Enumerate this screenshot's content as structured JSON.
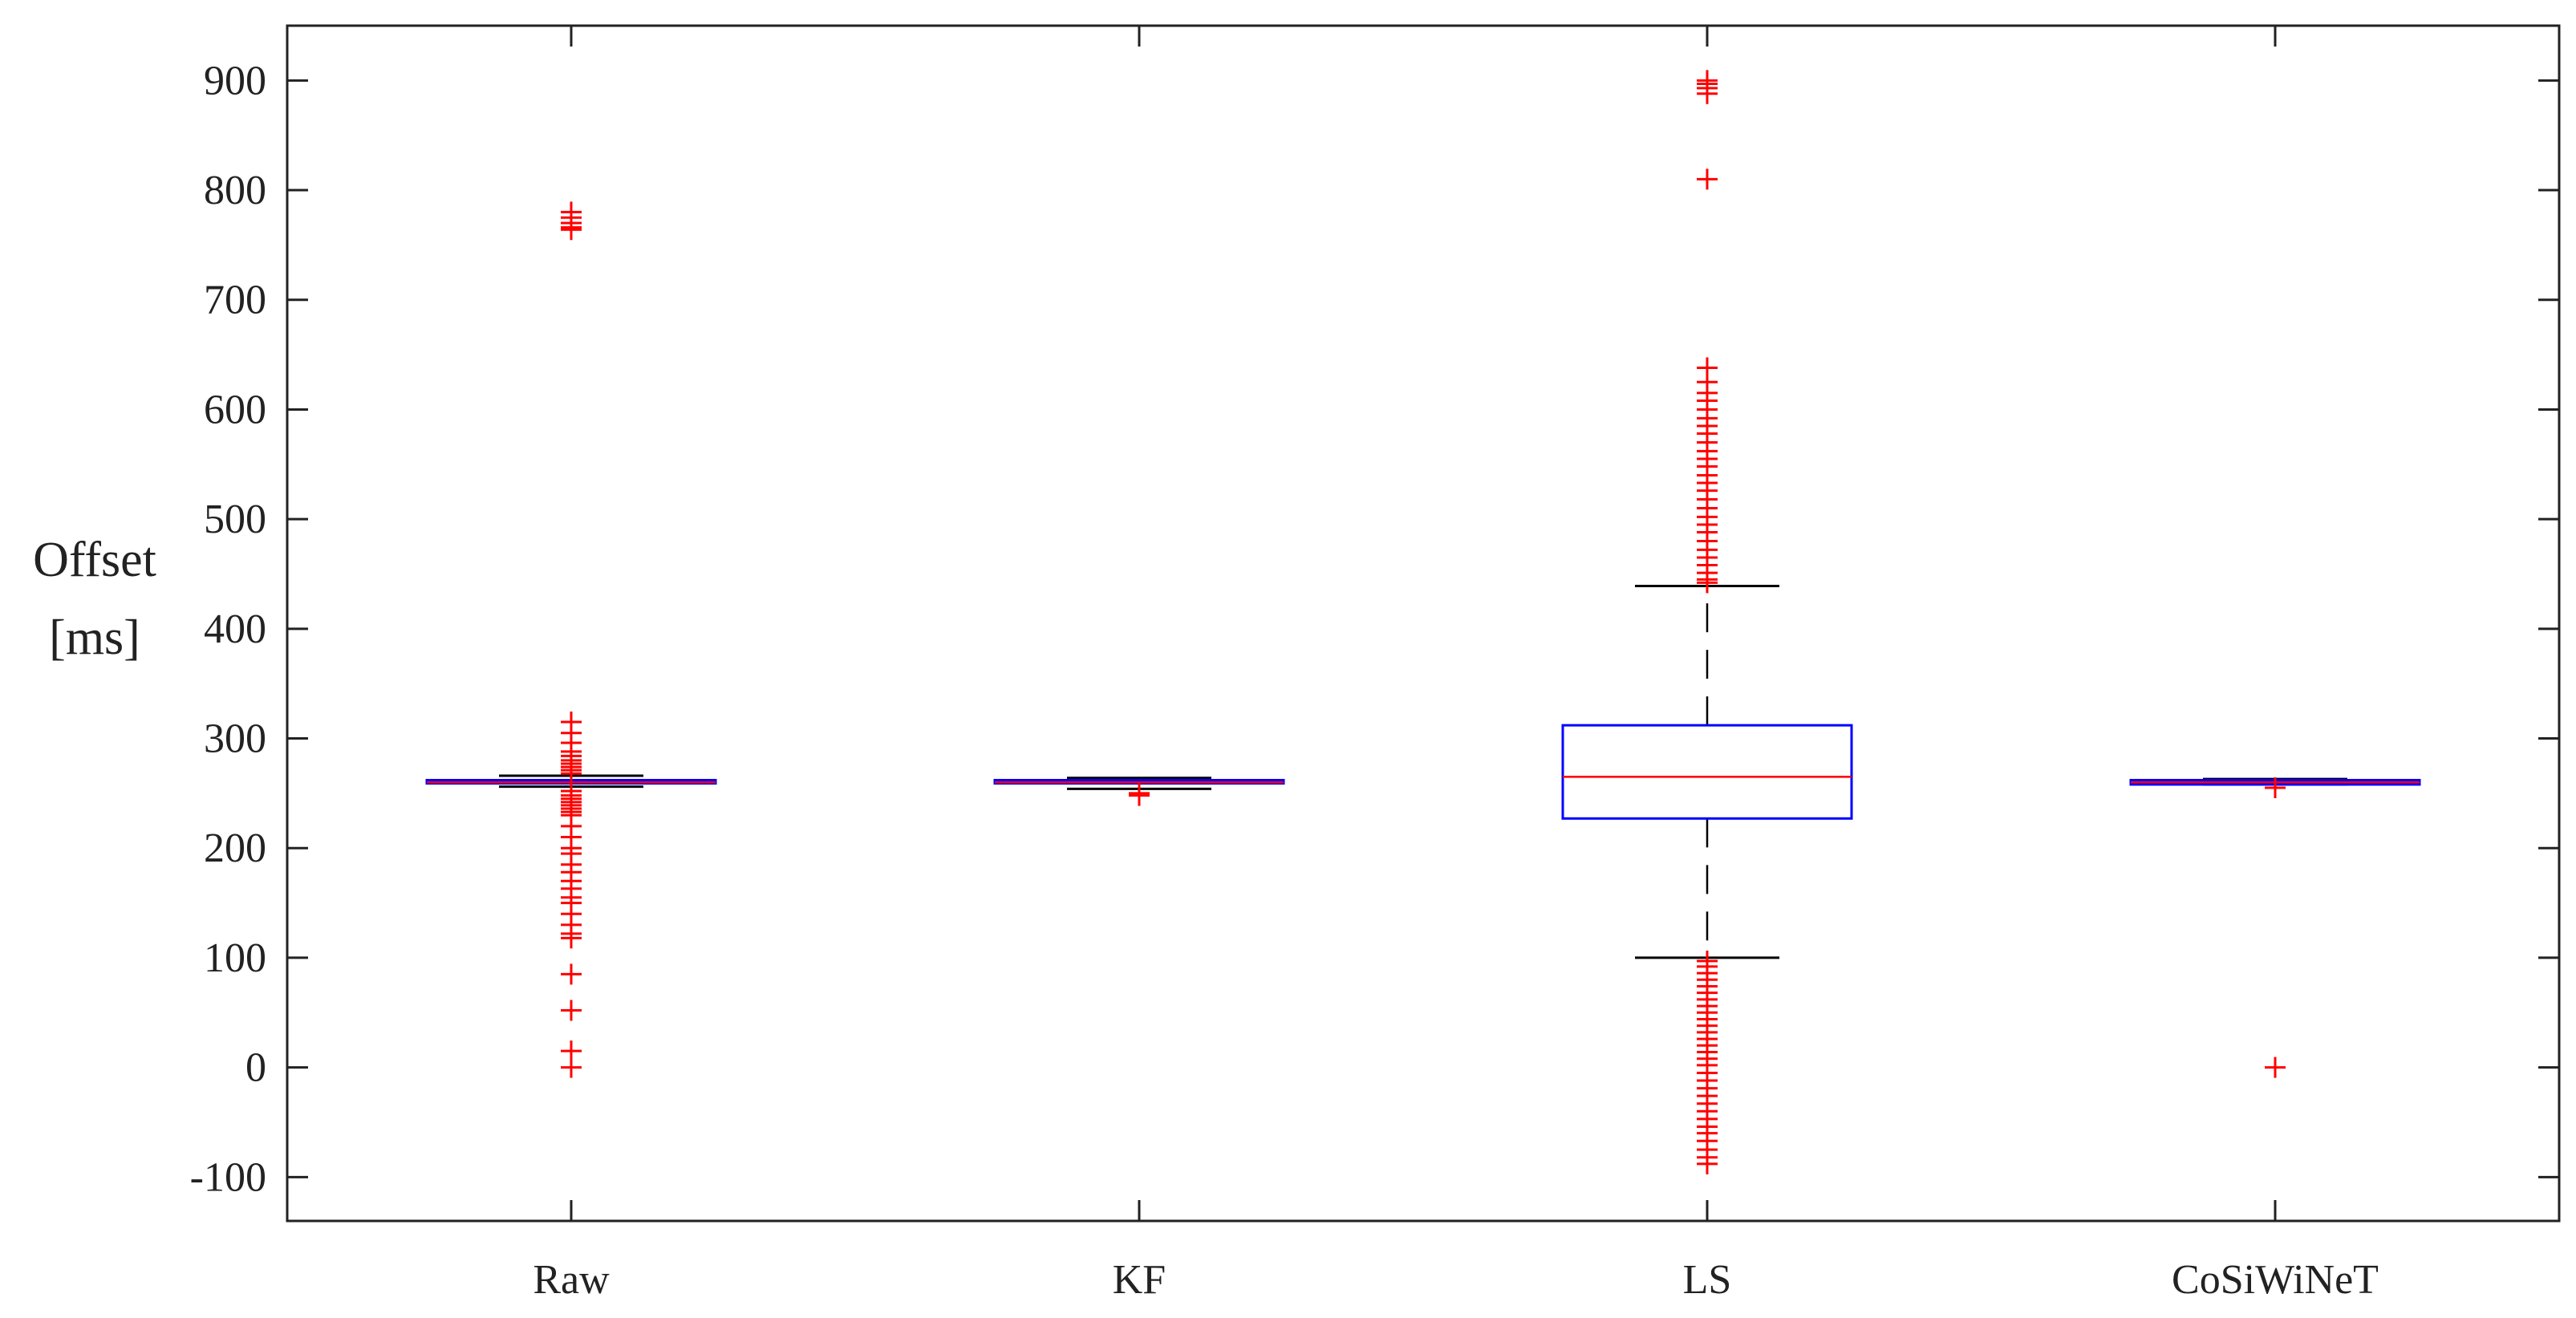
{
  "chart_data": {
    "type": "box",
    "title": "",
    "xlabel": "",
    "ylabel_lines": [
      "Offset",
      "[ms]"
    ],
    "ylim": [
      -140,
      950
    ],
    "yticks": [
      -100,
      0,
      100,
      200,
      300,
      400,
      500,
      600,
      700,
      800,
      900
    ],
    "ytick_labels": [
      "-100",
      "0",
      "100",
      "200",
      "300",
      "400",
      "500",
      "600",
      "700",
      "800",
      "900"
    ],
    "grid": false,
    "colors": {
      "box": "#0000ff",
      "median": "#ff0000",
      "whisker": "#000000",
      "outlier": "#ff0000",
      "axis": "#222222"
    },
    "categories": [
      "Raw",
      "KF",
      "LS",
      "CoSiWiNeT"
    ],
    "boxes": [
      {
        "name": "Raw",
        "q1": 259,
        "median": 260,
        "q3": 262,
        "whisker_low": 256,
        "whisker_high": 266,
        "outliers": [
          780,
          775,
          770,
          766,
          764,
          315,
          305,
          296,
          288,
          284,
          280,
          277,
          274,
          271,
          268,
          252,
          248,
          245,
          242,
          239,
          236,
          233,
          230,
          220,
          210,
          200,
          195,
          185,
          178,
          170,
          163,
          155,
          150,
          140,
          130,
          122,
          118,
          85,
          52,
          15,
          0
        ]
      },
      {
        "name": "KF",
        "q1": 259,
        "median": 260,
        "q3": 262,
        "whisker_low": 254,
        "whisker_high": 264,
        "outliers": [
          250,
          248
        ]
      },
      {
        "name": "LS",
        "q1": 227,
        "median": 265,
        "q3": 312,
        "whisker_low": 100,
        "whisker_high": 439,
        "outliers": [
          900,
          897,
          893,
          888,
          810,
          638,
          625,
          615,
          608,
          600,
          592,
          585,
          578,
          570,
          562,
          555,
          548,
          540,
          533,
          526,
          518,
          510,
          502,
          495,
          488,
          480,
          472,
          465,
          458,
          451,
          445,
          442,
          97,
          92,
          86,
          80,
          74,
          68,
          62,
          56,
          50,
          44,
          38,
          32,
          26,
          20,
          14,
          8,
          2,
          -5,
          -12,
          -19,
          -26,
          -33,
          -40,
          -47,
          -54,
          -60,
          -67,
          -75,
          -82,
          -88
        ]
      },
      {
        "name": "CoSiWiNeT",
        "q1": 258,
        "median": 260,
        "q3": 262,
        "whisker_low": 258,
        "whisker_high": 263,
        "outliers": [
          255,
          0
        ]
      }
    ]
  }
}
